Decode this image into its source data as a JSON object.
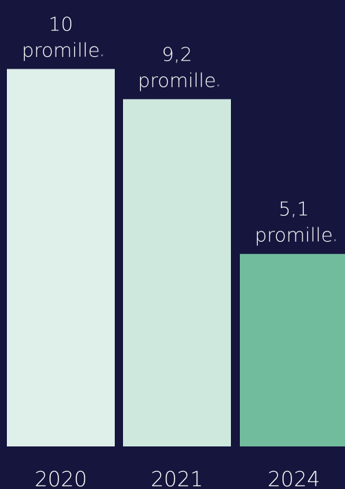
{
  "colors": {
    "background": "#15153d",
    "bars": [
      "#dfefea",
      "#cfe8de",
      "#72bc9e"
    ],
    "text": "#ffffff"
  },
  "chart_data": {
    "type": "bar",
    "categories": [
      "2020",
      "2021",
      "2024"
    ],
    "values": [
      10,
      9.2,
      5.1
    ],
    "value_labels": [
      "10",
      "9,2",
      "5,1"
    ],
    "unit": "promille",
    "ylim": [
      0,
      11.1
    ],
    "grid": false,
    "legend": "none"
  }
}
